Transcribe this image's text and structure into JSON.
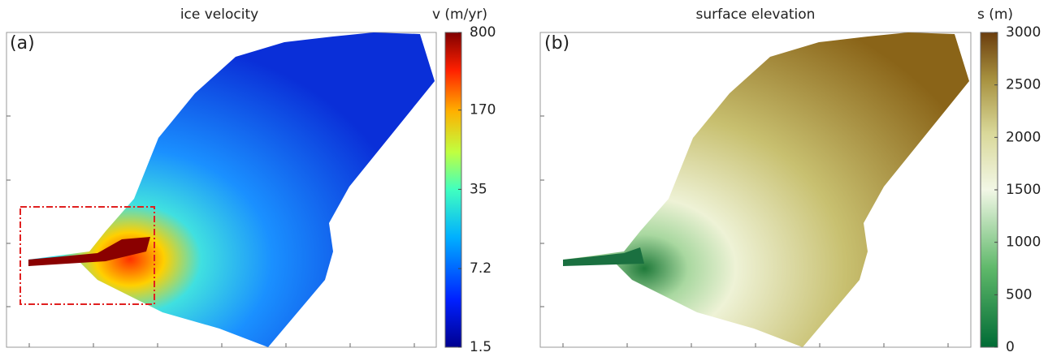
{
  "panels": [
    {
      "label": "(a)",
      "title": "ice velocity",
      "colorbar": {
        "label": "v (m/yr)",
        "log": true,
        "lim": [
          1.5,
          800
        ],
        "ticks": [
          1.5,
          7.2,
          35,
          170,
          800
        ]
      }
    },
    {
      "label": "(b)",
      "title": "surface elevation",
      "colorbar": {
        "label": "s (m)",
        "log": false,
        "lim": [
          0,
          3000
        ],
        "ticks": [
          0,
          500,
          1000,
          1500,
          2000,
          2500,
          3000
        ]
      }
    }
  ]
}
